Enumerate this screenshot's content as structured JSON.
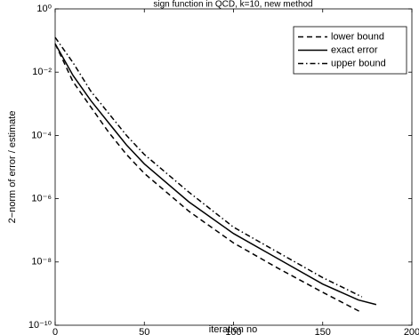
{
  "chart_data": {
    "type": "line",
    "title": "sign function in QCD, k=10, new method",
    "xlabel": "iteration no",
    "ylabel": "2−norm of error / estimate",
    "xlim": [
      0,
      200
    ],
    "xticks": [
      0,
      50,
      100,
      150,
      200
    ],
    "ylim": [
      1e-10,
      1
    ],
    "log_y": true,
    "yticks": [
      {
        "value": 1,
        "label": "10⁰"
      },
      {
        "value": 0.01,
        "label": "10⁻²"
      },
      {
        "value": 0.0001,
        "label": "10⁻⁴"
      },
      {
        "value": 1e-06,
        "label": "10⁻⁶"
      },
      {
        "value": 1e-08,
        "label": "10⁻⁸"
      },
      {
        "value": 1e-10,
        "label": "10⁻¹⁰"
      }
    ],
    "legend": "upper right",
    "series": [
      {
        "name": "lower bound",
        "color": "#000000",
        "line_style": "dashed",
        "x": [
          0,
          5,
          10,
          20,
          30,
          40,
          50,
          75,
          100,
          125,
          150,
          172
        ],
        "values": [
          0.079,
          0.02,
          0.005,
          0.00079,
          0.000126,
          2.5e-05,
          6.3e-06,
          4e-07,
          4e-08,
          6.3e-09,
          1.1e-09,
          2.5e-10
        ]
      },
      {
        "name": "exact error",
        "color": "#000000",
        "line_style": "solid",
        "x": [
          0,
          5,
          10,
          20,
          30,
          40,
          50,
          75,
          100,
          125,
          150,
          170,
          180
        ],
        "values": [
          0.079,
          0.025,
          0.0079,
          0.00126,
          0.00025,
          5e-05,
          1.26e-05,
          7.9e-07,
          7.9e-08,
          1.26e-08,
          2e-09,
          6.3e-10,
          4.5e-10
        ]
      },
      {
        "name": "upper bound",
        "color": "#000000",
        "line_style": "dashdot",
        "x": [
          0,
          5,
          10,
          20,
          30,
          40,
          50,
          75,
          100,
          125,
          150,
          172
        ],
        "values": [
          0.126,
          0.05,
          0.02,
          0.0025,
          0.0005,
          0.0001,
          2.5e-05,
          1.6e-06,
          1.26e-07,
          2e-08,
          3.2e-09,
          7.9e-10
        ]
      }
    ]
  }
}
